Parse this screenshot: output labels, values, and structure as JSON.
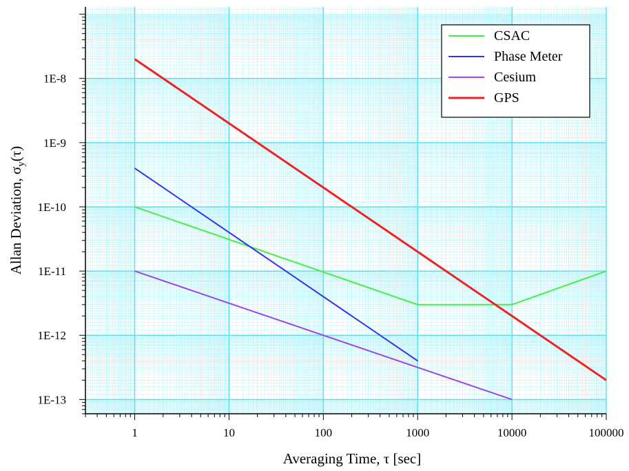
{
  "chart_data": {
    "type": "line",
    "xscale": "log",
    "yscale": "log",
    "xlim": [
      0.3,
      100000
    ],
    "ylim": [
      6e-14,
      1.3e-07
    ],
    "xlabel": "Averaging Time, τ [sec]",
    "ylabel": {
      "main": "Allan Deviation, σ",
      "sub": "y",
      "tail": "(τ)"
    },
    "xticks": [
      {
        "value": 1,
        "label": "1"
      },
      {
        "value": 10,
        "label": "10"
      },
      {
        "value": 100,
        "label": "100"
      },
      {
        "value": 1000,
        "label": "1000"
      },
      {
        "value": 10000,
        "label": "10000"
      },
      {
        "value": 100000,
        "label": "100000"
      }
    ],
    "yticks": [
      {
        "value": 1e-13,
        "label": "1E-13"
      },
      {
        "value": 1e-12,
        "label": "1E-12"
      },
      {
        "value": 1e-11,
        "label": "1E-11"
      },
      {
        "value": 1e-10,
        "label": "1E-10"
      },
      {
        "value": 1e-09,
        "label": "1E-9"
      },
      {
        "value": 1e-08,
        "label": "1E-8"
      }
    ],
    "grid": true,
    "legend_position": "top-right",
    "series": [
      {
        "name": "CSAC",
        "color": "#44ee44",
        "width": 2,
        "points": [
          [
            1,
            1e-10
          ],
          [
            1000,
            3e-12
          ],
          [
            10000,
            3e-12
          ],
          [
            100000,
            1e-11
          ]
        ]
      },
      {
        "name": "Phase Meter",
        "color": "#3333ee",
        "width": 2,
        "points": [
          [
            1,
            4e-10
          ],
          [
            1000,
            4e-13
          ]
        ]
      },
      {
        "name": "Cesium",
        "color": "#9944ee",
        "width": 2,
        "points": [
          [
            1,
            1e-11
          ],
          [
            10000,
            1e-13
          ]
        ]
      },
      {
        "name": "GPS",
        "color": "#ee2222",
        "width": 3,
        "points": [
          [
            1,
            2e-08
          ],
          [
            100000,
            2e-13
          ]
        ]
      }
    ],
    "colors": {
      "grid": "#5fe0ee",
      "minor_grid": "#a8f0f6",
      "axis": "#000000"
    }
  }
}
